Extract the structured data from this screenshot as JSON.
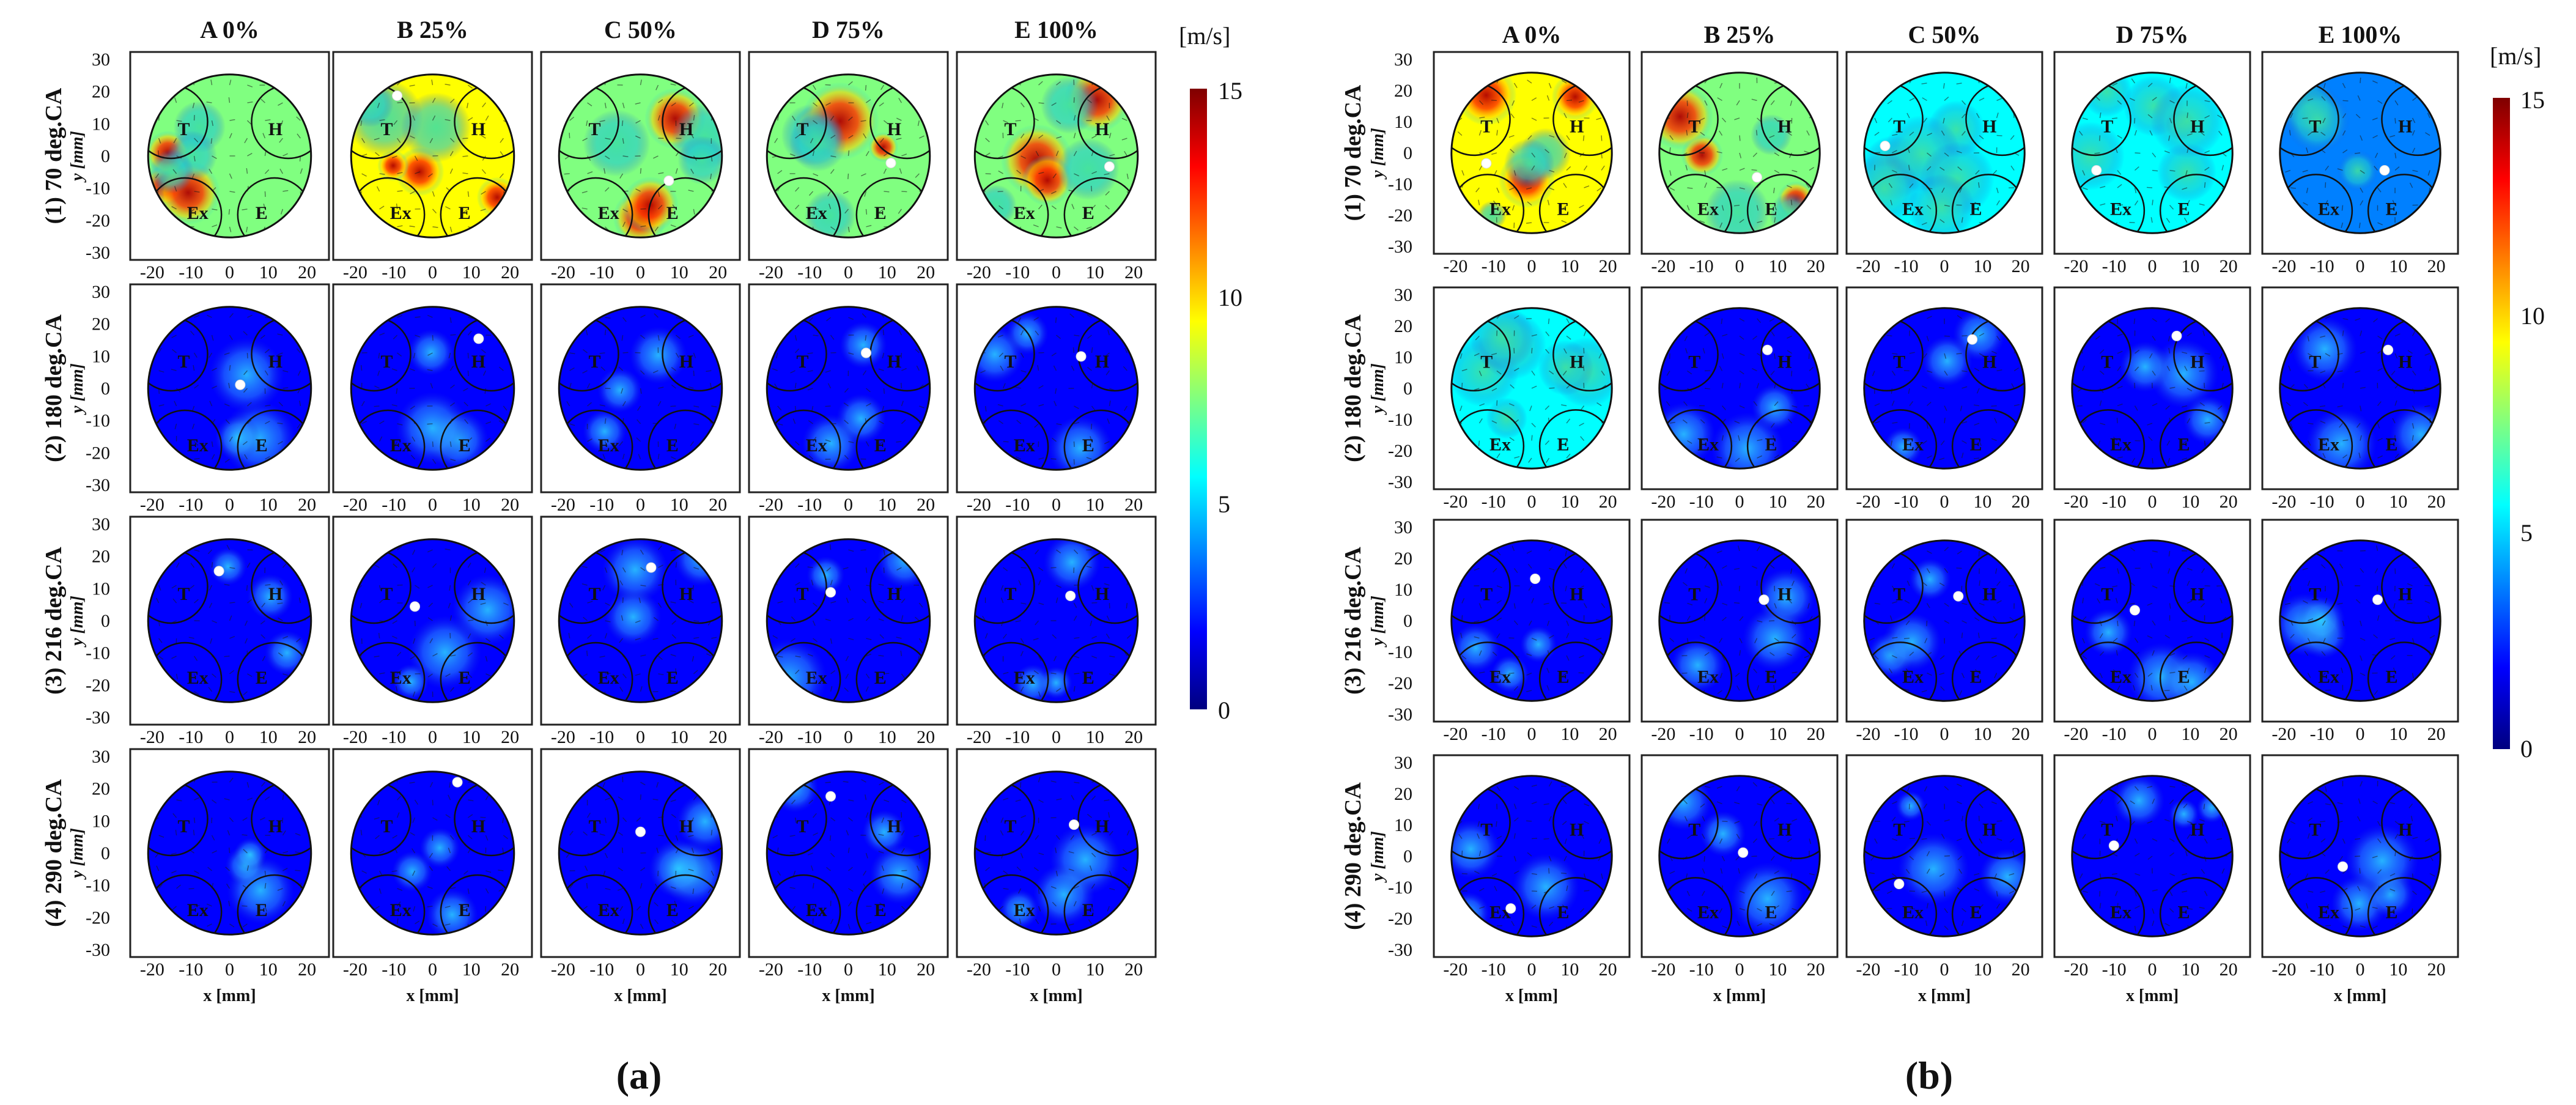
{
  "colors": {
    "frame": "#222222",
    "circle": "#111111",
    "base_flow": "#1a3fd6",
    "dot": "#ffffff",
    "text": "#111111"
  },
  "colorbar": {
    "unit": "[m/s]",
    "min_label": "0",
    "tick_5": "5",
    "tick_10": "10",
    "max_label": "15",
    "range": [
      0,
      15
    ],
    "stops": [
      "#00007f",
      "#0000ff",
      "#0080ff",
      "#00ffff",
      "#80ff80",
      "#ffff00",
      "#ff8000",
      "#ff0000",
      "#7f0000"
    ]
  },
  "columns": [
    "A 0%",
    "B 25%",
    "C 50%",
    "D 75%",
    "E 100%"
  ],
  "rows": [
    "(1) 70 deg.CA",
    "(2) 180 deg.CA",
    "(3) 216 deg.CA",
    "(4) 290 deg.CA"
  ],
  "axis": {
    "y_label": "y [mm]",
    "x_label": "x [mm]",
    "y_ticks": [
      "30",
      "20",
      "10",
      "0",
      "-10",
      "-20",
      "-30"
    ],
    "x_ticks": [
      "-20",
      "-10",
      "0",
      "10",
      "20"
    ]
  },
  "valve_labels": [
    "T",
    "H",
    "Ex",
    "E"
  ],
  "panels": [
    {
      "label": "(a)",
      "speed_levels": [
        [
          0.55,
          0.6,
          0.45,
          0.5,
          0.5
        ],
        [
          0.12,
          0.1,
          0.1,
          0.12,
          0.12
        ],
        [
          0.1,
          0.1,
          0.1,
          0.1,
          0.1
        ],
        [
          0.08,
          0.08,
          0.08,
          0.1,
          0.1
        ]
      ],
      "vortex_centers_mm": [
        [
          [
            null,
            null
          ],
          [
            -10,
            17
          ],
          [
            8,
            -7
          ],
          [
            12,
            -2
          ],
          [
            15,
            -3
          ]
        ],
        [
          [
            3,
            1
          ],
          [
            13,
            14
          ],
          [
            null,
            null
          ],
          [
            5,
            10
          ],
          [
            7,
            9
          ]
        ],
        [
          [
            -3,
            14
          ],
          [
            -5,
            4
          ],
          [
            3,
            15
          ],
          [
            -5,
            8
          ],
          [
            4,
            7
          ]
        ],
        [
          [
            null,
            null
          ],
          [
            7,
            20
          ],
          [
            0,
            6
          ],
          [
            -5,
            16
          ],
          [
            5,
            8
          ]
        ]
      ]
    },
    {
      "label": "(b)",
      "speed_levels": [
        [
          0.6,
          0.45,
          0.35,
          0.4,
          0.3
        ],
        [
          0.35,
          0.12,
          0.1,
          0.12,
          0.1
        ],
        [
          0.1,
          0.1,
          0.1,
          0.1,
          0.1
        ],
        [
          0.12,
          0.08,
          0.1,
          0.08,
          0.1
        ]
      ],
      "vortex_centers_mm": [
        [
          [
            -13,
            -3
          ],
          [
            5,
            -7
          ],
          [
            -17,
            2
          ],
          [
            -16,
            -5
          ],
          [
            7,
            -5
          ]
        ],
        [
          [
            null,
            null
          ],
          [
            8,
            11
          ],
          [
            8,
            14
          ],
          [
            7,
            15
          ],
          [
            8,
            11
          ]
        ],
        [
          [
            1,
            12
          ],
          [
            7,
            6
          ],
          [
            4,
            7
          ],
          [
            -5,
            3
          ],
          [
            5,
            6
          ]
        ],
        [
          [
            -6,
            -15
          ],
          [
            1,
            1
          ],
          [
            -13,
            -8
          ],
          [
            -11,
            3
          ],
          [
            -5,
            -3
          ]
        ]
      ]
    }
  ]
}
